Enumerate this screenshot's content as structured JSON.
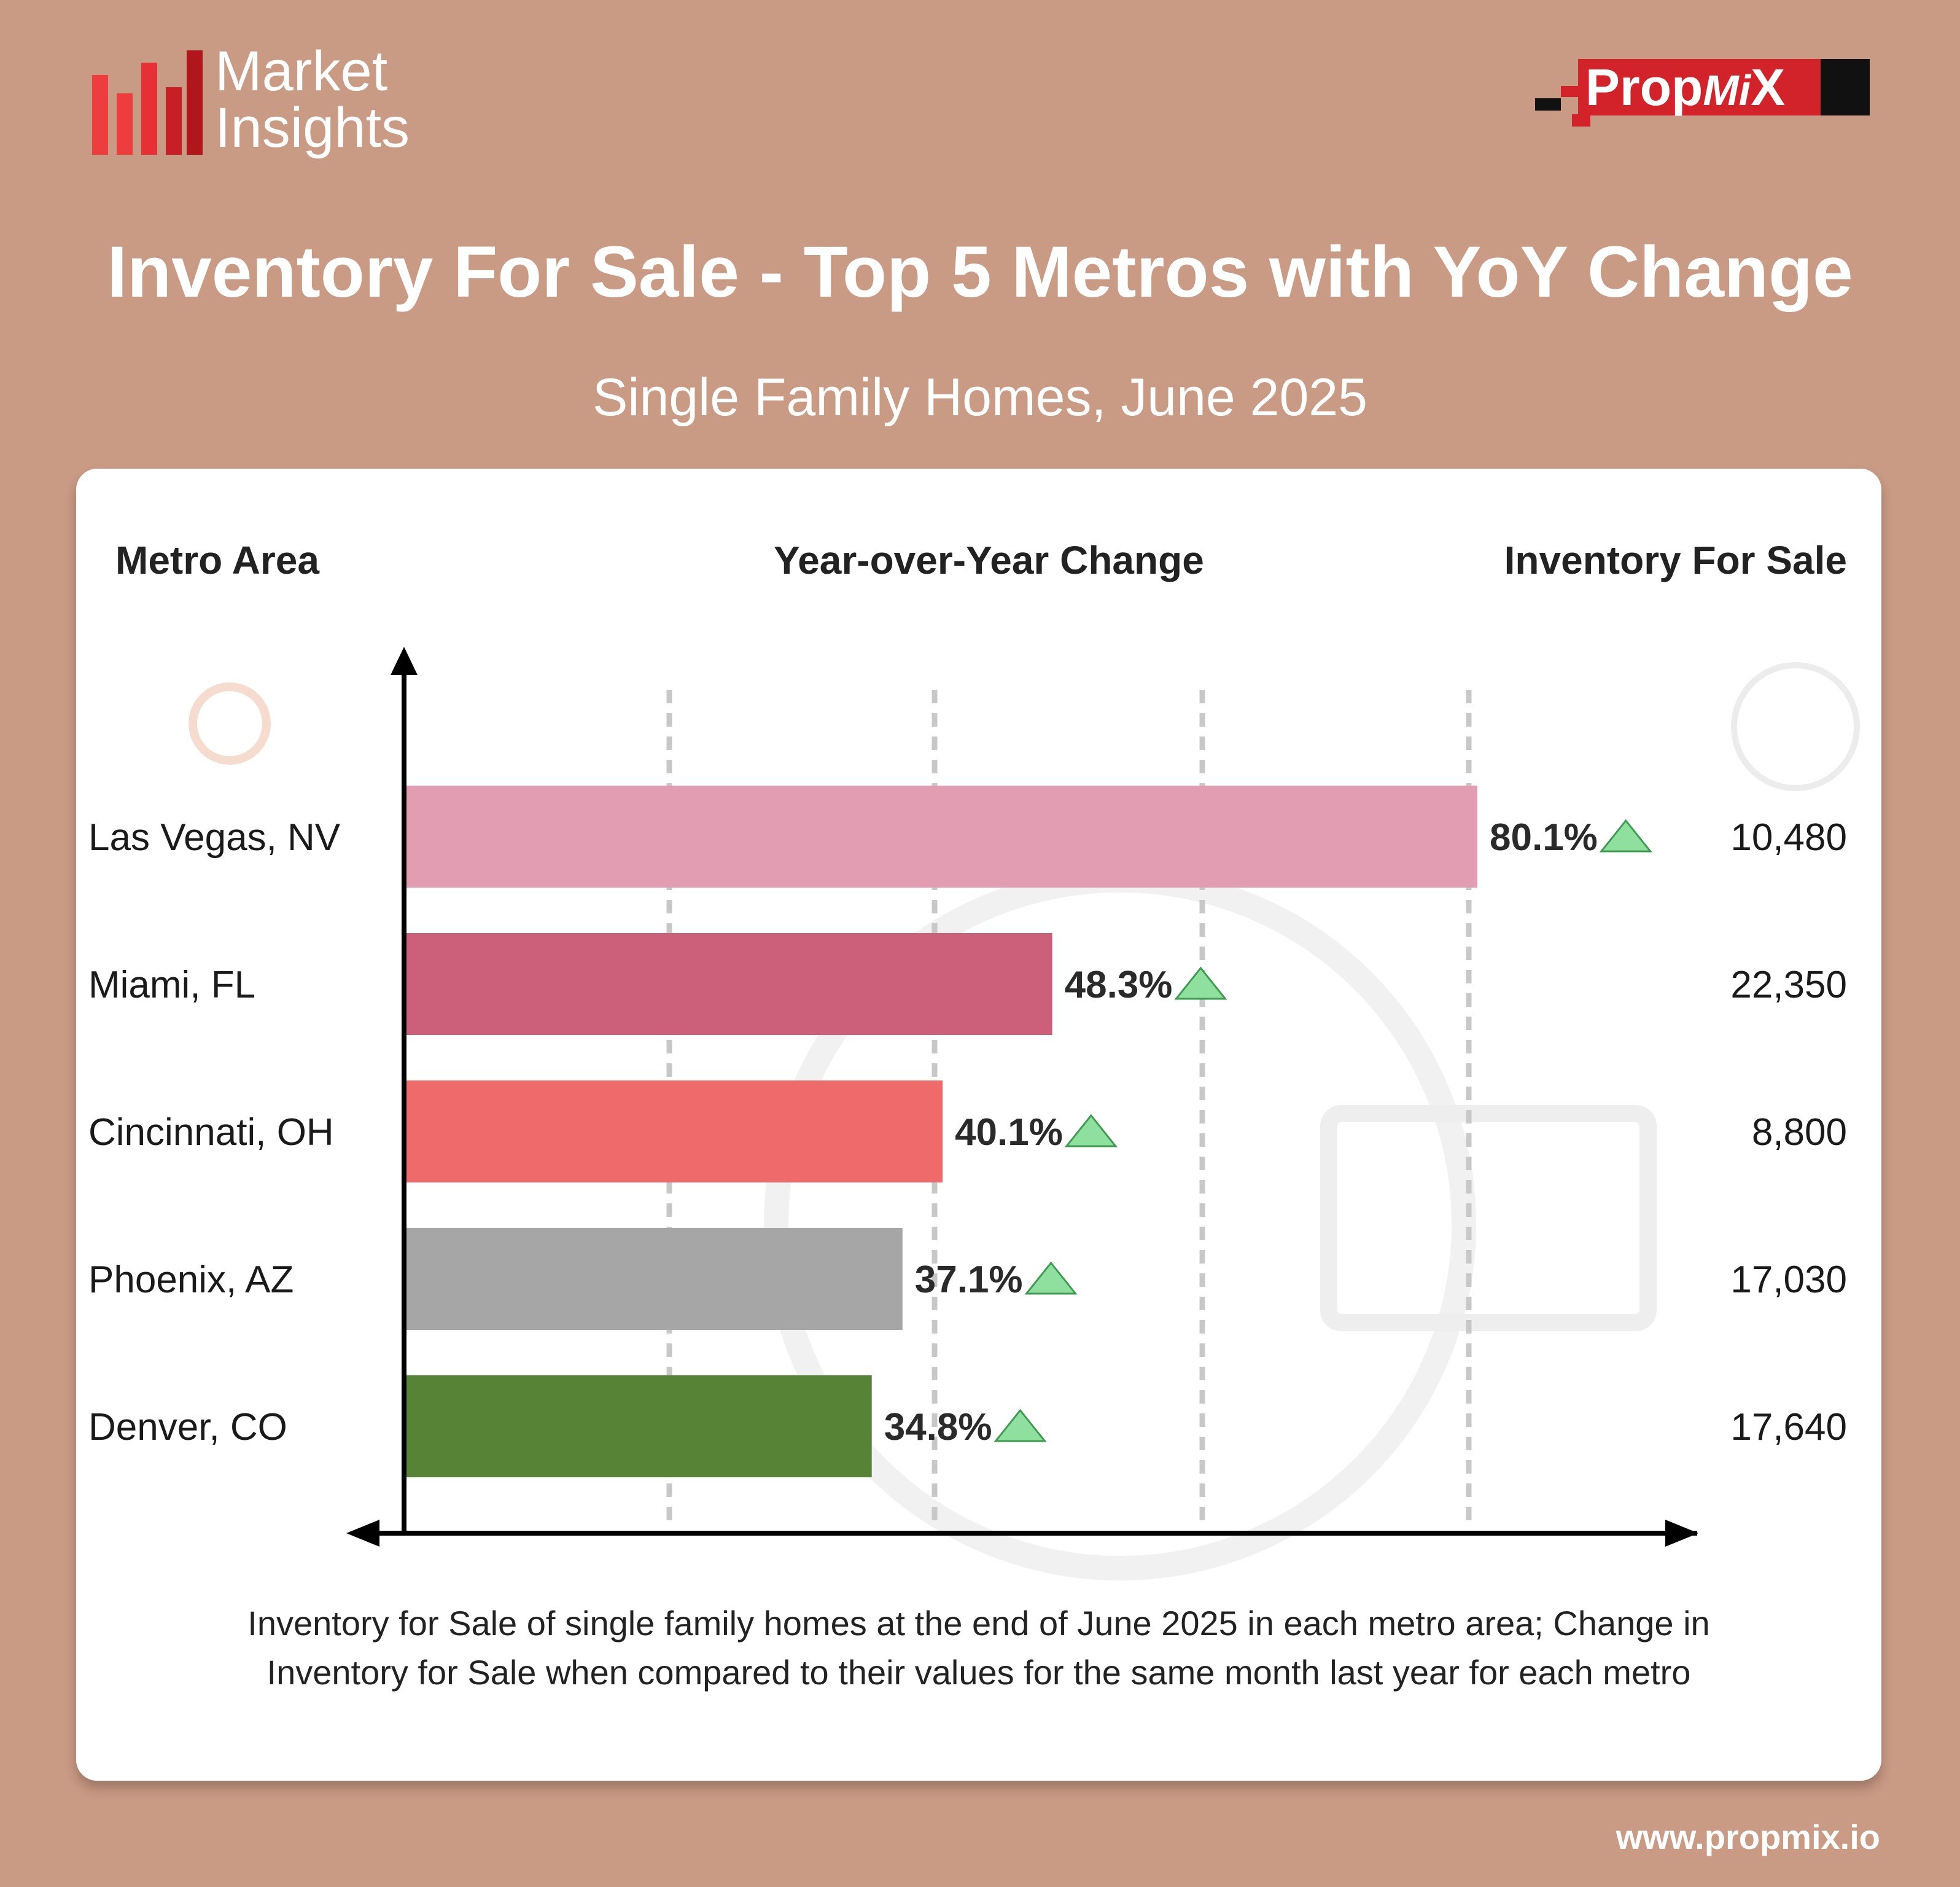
{
  "brand": {
    "market_line1": "Market",
    "market_line2": "Insights",
    "propmix_prop": "Prop",
    "propmix_mi": "Mi",
    "propmix_x": "X",
    "website": "www.propmix.io"
  },
  "title": "Inventory For Sale - Top 5 Metros with YoY Change",
  "subtitle": "Single Family Homes, June 2025",
  "columns": {
    "metro": "Metro Area",
    "yoy": "Year-over-Year Change",
    "inventory": "Inventory For Sale"
  },
  "caption": "Inventory for Sale of single family homes at the end of June 2025 in each metro area; Change in Inventory for Sale when compared to their values for the same month last year for each metro",
  "chart_data": {
    "type": "bar",
    "orientation": "horizontal",
    "title": "Inventory For Sale - Top 5 Metros with YoY Change",
    "subtitle": "Single Family Homes, June 2025",
    "categories": [
      "Las Vegas, NV",
      "Miami, FL",
      "Cincinnati, OH",
      "Phoenix, AZ",
      "Denver, CO"
    ],
    "values": [
      80.1,
      48.3,
      40.1,
      37.1,
      34.8
    ],
    "labels": [
      "80.1%",
      "48.3%",
      "40.1%",
      "37.1%",
      "34.8%"
    ],
    "inventory": [
      10480,
      22350,
      8800,
      17030,
      17640
    ],
    "inventory_labels": [
      "10,480",
      "22,350",
      "8,800",
      "17,030",
      "17,640"
    ],
    "colors": [
      "#e39db2",
      "#cc607b",
      "#ef6a6b",
      "#a6a6a6",
      "#568336"
    ],
    "trend": "up",
    "trend_color": "#8fdf9e",
    "xlim": [
      0,
      80.1
    ],
    "grid": "vertical dashed",
    "xlabel": "Year-over-Year Change",
    "ylabel": "Metro Area"
  }
}
